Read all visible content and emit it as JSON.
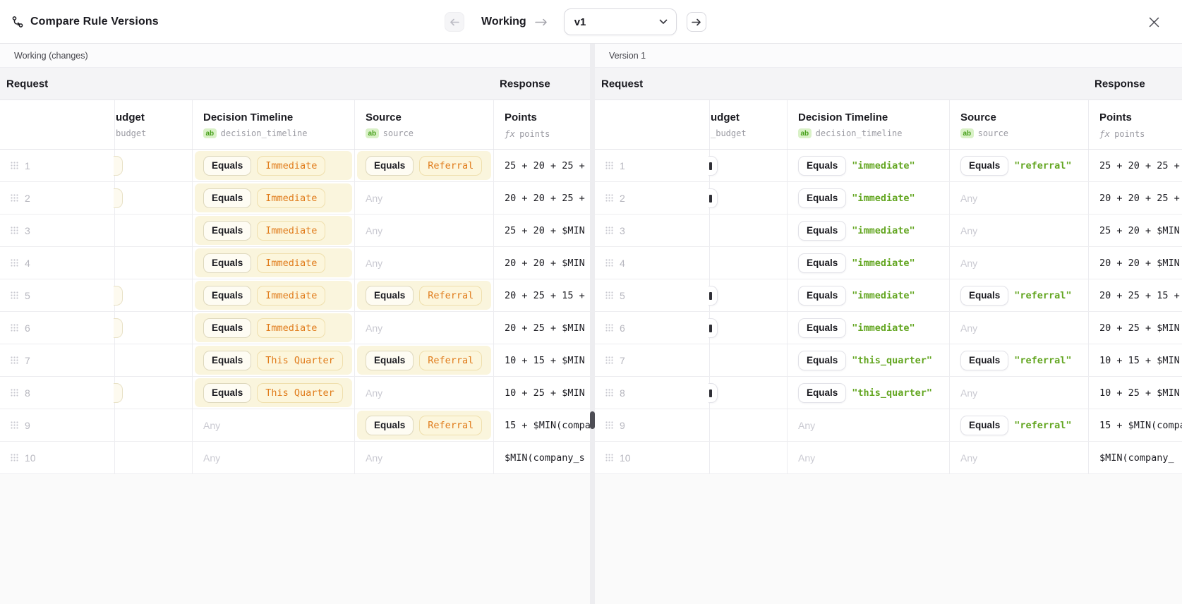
{
  "modal": {
    "title": "Compare Rule Versions",
    "nav": {
      "from_label": "Working",
      "selected_version": "v1"
    }
  },
  "colors": {
    "changed_cell_highlight": "#faf5dd",
    "changed_value_orange": "#e07b1a",
    "string_value_green": "#63a621",
    "type_badge_green_bg": "#d9f1c7",
    "section_header_gray": "#f4f4f6",
    "splitter_handle": "#4d4d55"
  },
  "icons": {
    "title": "compare-branches",
    "prev": "arrow-left",
    "next": "arrow-right",
    "between_versions": "arrow-right",
    "select": "chevron-down",
    "close": "x",
    "row_drag": "grip-dots",
    "string_type": "ab",
    "formula_type": "fx"
  },
  "panels": [
    {
      "label": "Working (changes)",
      "request_label": "Request",
      "response_label": "Response",
      "columns": [
        {
          "title": "udget",
          "sub": "budget",
          "badge_text": "",
          "badge_kind": ""
        },
        {
          "title": "Decision Timeline",
          "sub": "decision_timeline",
          "badge_text": "ab",
          "badge_kind": "type"
        },
        {
          "title": "Source",
          "sub": "source",
          "badge_text": "ab",
          "badge_kind": "type"
        },
        {
          "title": "Points",
          "sub": "points",
          "badge_text": "ƒx",
          "badge_kind": "formula"
        }
      ],
      "rows": [
        {
          "num": "1",
          "budget_clipped": true,
          "timeline": {
            "kind": "chip",
            "op": "Equals",
            "value": "Immediate",
            "changed": true
          },
          "source": {
            "kind": "chip",
            "op": "Equals",
            "value": "Referral",
            "changed": true
          },
          "points": "25 + 20 + 25 +"
        },
        {
          "num": "2",
          "budget_clipped": true,
          "timeline": {
            "kind": "chip",
            "op": "Equals",
            "value": "Immediate",
            "changed": true
          },
          "source": {
            "kind": "any",
            "value": "Any"
          },
          "points": "20 + 20 + 25 +"
        },
        {
          "num": "3",
          "budget_clipped": false,
          "timeline": {
            "kind": "chip",
            "op": "Equals",
            "value": "Immediate",
            "changed": true
          },
          "source": {
            "kind": "any",
            "value": "Any"
          },
          "points": "25 + 20 + $MIN"
        },
        {
          "num": "4",
          "budget_clipped": false,
          "timeline": {
            "kind": "chip",
            "op": "Equals",
            "value": "Immediate",
            "changed": true
          },
          "source": {
            "kind": "any",
            "value": "Any"
          },
          "points": "20 + 20 + $MIN"
        },
        {
          "num": "5",
          "budget_clipped": true,
          "timeline": {
            "kind": "chip",
            "op": "Equals",
            "value": "Immediate",
            "changed": true
          },
          "source": {
            "kind": "chip",
            "op": "Equals",
            "value": "Referral",
            "changed": true
          },
          "points": "20 + 25 + 15 +"
        },
        {
          "num": "6",
          "budget_clipped": true,
          "timeline": {
            "kind": "chip",
            "op": "Equals",
            "value": "Immediate",
            "changed": true
          },
          "source": {
            "kind": "any",
            "value": "Any"
          },
          "points": "20 + 25 + $MIN"
        },
        {
          "num": "7",
          "budget_clipped": false,
          "timeline": {
            "kind": "chip",
            "op": "Equals",
            "value": "This Quarter",
            "changed": true
          },
          "source": {
            "kind": "chip",
            "op": "Equals",
            "value": "Referral",
            "changed": true
          },
          "points": "10 + 15 + $MIN"
        },
        {
          "num": "8",
          "budget_clipped": true,
          "timeline": {
            "kind": "chip",
            "op": "Equals",
            "value": "This Quarter",
            "changed": true
          },
          "source": {
            "kind": "any",
            "value": "Any"
          },
          "points": "10 + 25 + $MIN"
        },
        {
          "num": "9",
          "budget_clipped": false,
          "timeline": {
            "kind": "any",
            "value": "Any"
          },
          "source": {
            "kind": "chip",
            "op": "Equals",
            "value": "Referral",
            "changed": true
          },
          "points": "15 + $MIN(compa"
        },
        {
          "num": "10",
          "budget_clipped": false,
          "timeline": {
            "kind": "any",
            "value": "Any"
          },
          "source": {
            "kind": "any",
            "value": "Any"
          },
          "points": "$MIN(company_s"
        }
      ]
    },
    {
      "label": "Version 1",
      "request_label": "Request",
      "response_label": "Response",
      "columns": [
        {
          "title": "udget",
          "sub": "_budget",
          "badge_text": "",
          "badge_kind": ""
        },
        {
          "title": "Decision Timeline",
          "sub": "decision_timeline",
          "badge_text": "ab",
          "badge_kind": "type"
        },
        {
          "title": "Source",
          "sub": "source",
          "badge_text": "ab",
          "badge_kind": "type"
        },
        {
          "title": "Points",
          "sub": "points",
          "badge_text": "ƒx",
          "badge_kind": "formula"
        }
      ],
      "rows": [
        {
          "num": "1",
          "budget_clipped": true,
          "timeline": {
            "kind": "str",
            "op": "Equals",
            "value": "\"immediate\"",
            "changed": false
          },
          "source": {
            "kind": "str",
            "op": "Equals",
            "value": "\"referral\"",
            "changed": false
          },
          "points": "25 + 20 + 25 +"
        },
        {
          "num": "2",
          "budget_clipped": true,
          "timeline": {
            "kind": "str",
            "op": "Equals",
            "value": "\"immediate\"",
            "changed": false
          },
          "source": {
            "kind": "any",
            "value": "Any"
          },
          "points": "20 + 20 + 25 +"
        },
        {
          "num": "3",
          "budget_clipped": false,
          "timeline": {
            "kind": "str",
            "op": "Equals",
            "value": "\"immediate\"",
            "changed": false
          },
          "source": {
            "kind": "any",
            "value": "Any"
          },
          "points": "25 + 20 + $MIN"
        },
        {
          "num": "4",
          "budget_clipped": false,
          "timeline": {
            "kind": "str",
            "op": "Equals",
            "value": "\"immediate\"",
            "changed": false
          },
          "source": {
            "kind": "any",
            "value": "Any"
          },
          "points": "20 + 20 + $MIN"
        },
        {
          "num": "5",
          "budget_clipped": true,
          "timeline": {
            "kind": "str",
            "op": "Equals",
            "value": "\"immediate\"",
            "changed": false
          },
          "source": {
            "kind": "str",
            "op": "Equals",
            "value": "\"referral\"",
            "changed": false
          },
          "points": "20 + 25 + 15 +"
        },
        {
          "num": "6",
          "budget_clipped": true,
          "timeline": {
            "kind": "str",
            "op": "Equals",
            "value": "\"immediate\"",
            "changed": false
          },
          "source": {
            "kind": "any",
            "value": "Any"
          },
          "points": "20 + 25 + $MIN"
        },
        {
          "num": "7",
          "budget_clipped": false,
          "timeline": {
            "kind": "str",
            "op": "Equals",
            "value": "\"this_quarter\"",
            "changed": false
          },
          "source": {
            "kind": "str",
            "op": "Equals",
            "value": "\"referral\"",
            "changed": false
          },
          "points": "10 + 15 + $MIN"
        },
        {
          "num": "8",
          "budget_clipped": true,
          "timeline": {
            "kind": "str",
            "op": "Equals",
            "value": "\"this_quarter\"",
            "changed": false
          },
          "source": {
            "kind": "any",
            "value": "Any"
          },
          "points": "10 + 25 + $MIN"
        },
        {
          "num": "9",
          "budget_clipped": false,
          "timeline": {
            "kind": "any",
            "value": "Any"
          },
          "source": {
            "kind": "str",
            "op": "Equals",
            "value": "\"referral\"",
            "changed": false
          },
          "points": "15 + $MIN(compa"
        },
        {
          "num": "10",
          "budget_clipped": false,
          "timeline": {
            "kind": "any",
            "value": "Any"
          },
          "source": {
            "kind": "any",
            "value": "Any"
          },
          "points": "$MIN(company_"
        }
      ]
    }
  ]
}
